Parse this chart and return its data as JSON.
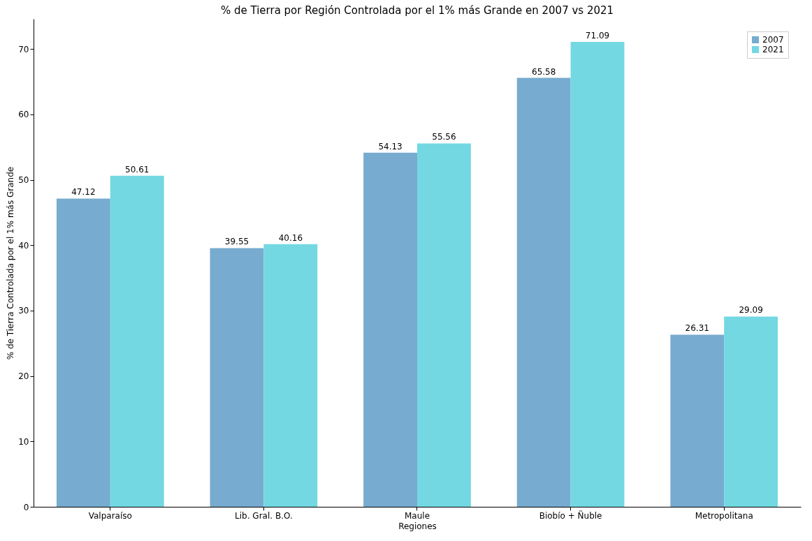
{
  "chart_data": {
    "type": "bar",
    "title": "% de Tierra por Región Controlada por el 1% más Grande en 2007 vs 2021",
    "xlabel": "Regiones",
    "ylabel": "% de Tierra Controlada por el 1% más Grande",
    "categories": [
      "Valparaíso",
      "Lib. Gral. B.O.",
      "Maule",
      "Biobío + Ñuble",
      "Metropolitana"
    ],
    "series": [
      {
        "name": "2007",
        "color": "#77abcf",
        "values": [
          47.12,
          39.55,
          54.13,
          65.58,
          26.31
        ]
      },
      {
        "name": "2021",
        "color": "#73d8e2",
        "values": [
          50.61,
          40.16,
          55.56,
          71.09,
          29.09
        ]
      }
    ],
    "ylim": [
      0,
      74.6
    ],
    "yticks": [
      0,
      10,
      20,
      30,
      40,
      50,
      60,
      70
    ],
    "grid": false,
    "legend": "top right",
    "data_labels": true
  }
}
